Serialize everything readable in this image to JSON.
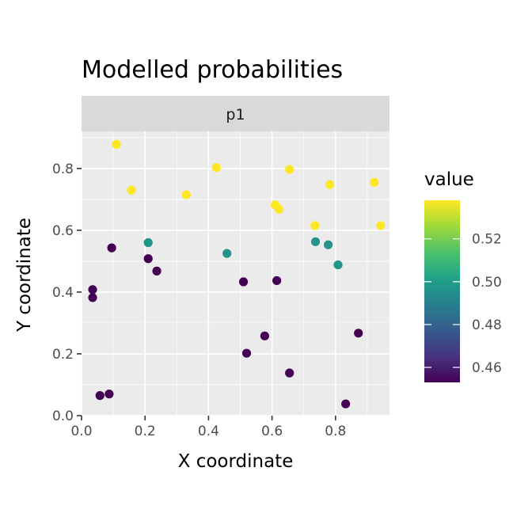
{
  "chart_data": {
    "type": "scatter",
    "title": "Modelled probabilities",
    "facet": "p1",
    "xlabel": "X coordinate",
    "ylabel": "Y coordinate",
    "xlim": [
      0.0,
      0.97
    ],
    "ylim": [
      0.0,
      0.92
    ],
    "xticks": [
      0.0,
      0.2,
      0.4,
      0.6,
      0.8
    ],
    "xtick_labels": [
      "0.0",
      "0.2",
      "0.4",
      "0.6",
      "0.8"
    ],
    "yticks": [
      0.0,
      0.2,
      0.4,
      0.6,
      0.8
    ],
    "ytick_labels": [
      "0.0",
      "0.2",
      "0.4",
      "0.6",
      "0.8"
    ],
    "grid": true,
    "legend": {
      "title": "value",
      "position": "right",
      "type": "colorbar",
      "palette": "viridis",
      "range": [
        0.453,
        0.538
      ],
      "ticks": [
        0.46,
        0.48,
        0.5,
        0.52
      ],
      "tick_labels": [
        "0.46",
        "0.48",
        "0.50",
        "0.52"
      ]
    },
    "points": [
      {
        "x": 0.11,
        "y": 0.878,
        "value": 0.538
      },
      {
        "x": 0.157,
        "y": 0.73,
        "value": 0.538
      },
      {
        "x": 0.33,
        "y": 0.715,
        "value": 0.538
      },
      {
        "x": 0.425,
        "y": 0.803,
        "value": 0.538
      },
      {
        "x": 0.61,
        "y": 0.682,
        "value": 0.538
      },
      {
        "x": 0.622,
        "y": 0.668,
        "value": 0.538
      },
      {
        "x": 0.655,
        "y": 0.797,
        "value": 0.538
      },
      {
        "x": 0.735,
        "y": 0.615,
        "value": 0.538
      },
      {
        "x": 0.782,
        "y": 0.748,
        "value": 0.538
      },
      {
        "x": 0.922,
        "y": 0.755,
        "value": 0.538
      },
      {
        "x": 0.942,
        "y": 0.615,
        "value": 0.538
      },
      {
        "x": 0.21,
        "y": 0.56,
        "value": 0.497
      },
      {
        "x": 0.458,
        "y": 0.525,
        "value": 0.497
      },
      {
        "x": 0.737,
        "y": 0.563,
        "value": 0.497
      },
      {
        "x": 0.777,
        "y": 0.553,
        "value": 0.497
      },
      {
        "x": 0.808,
        "y": 0.488,
        "value": 0.497
      },
      {
        "x": 0.095,
        "y": 0.543,
        "value": 0.453
      },
      {
        "x": 0.21,
        "y": 0.508,
        "value": 0.453
      },
      {
        "x": 0.237,
        "y": 0.468,
        "value": 0.453
      },
      {
        "x": 0.035,
        "y": 0.408,
        "value": 0.453
      },
      {
        "x": 0.035,
        "y": 0.382,
        "value": 0.453
      },
      {
        "x": 0.51,
        "y": 0.433,
        "value": 0.453
      },
      {
        "x": 0.615,
        "y": 0.437,
        "value": 0.453
      },
      {
        "x": 0.52,
        "y": 0.202,
        "value": 0.453
      },
      {
        "x": 0.577,
        "y": 0.258,
        "value": 0.453
      },
      {
        "x": 0.655,
        "y": 0.138,
        "value": 0.453
      },
      {
        "x": 0.872,
        "y": 0.267,
        "value": 0.453
      },
      {
        "x": 0.058,
        "y": 0.065,
        "value": 0.453
      },
      {
        "x": 0.087,
        "y": 0.07,
        "value": 0.453
      },
      {
        "x": 0.832,
        "y": 0.038,
        "value": 0.453
      }
    ]
  }
}
